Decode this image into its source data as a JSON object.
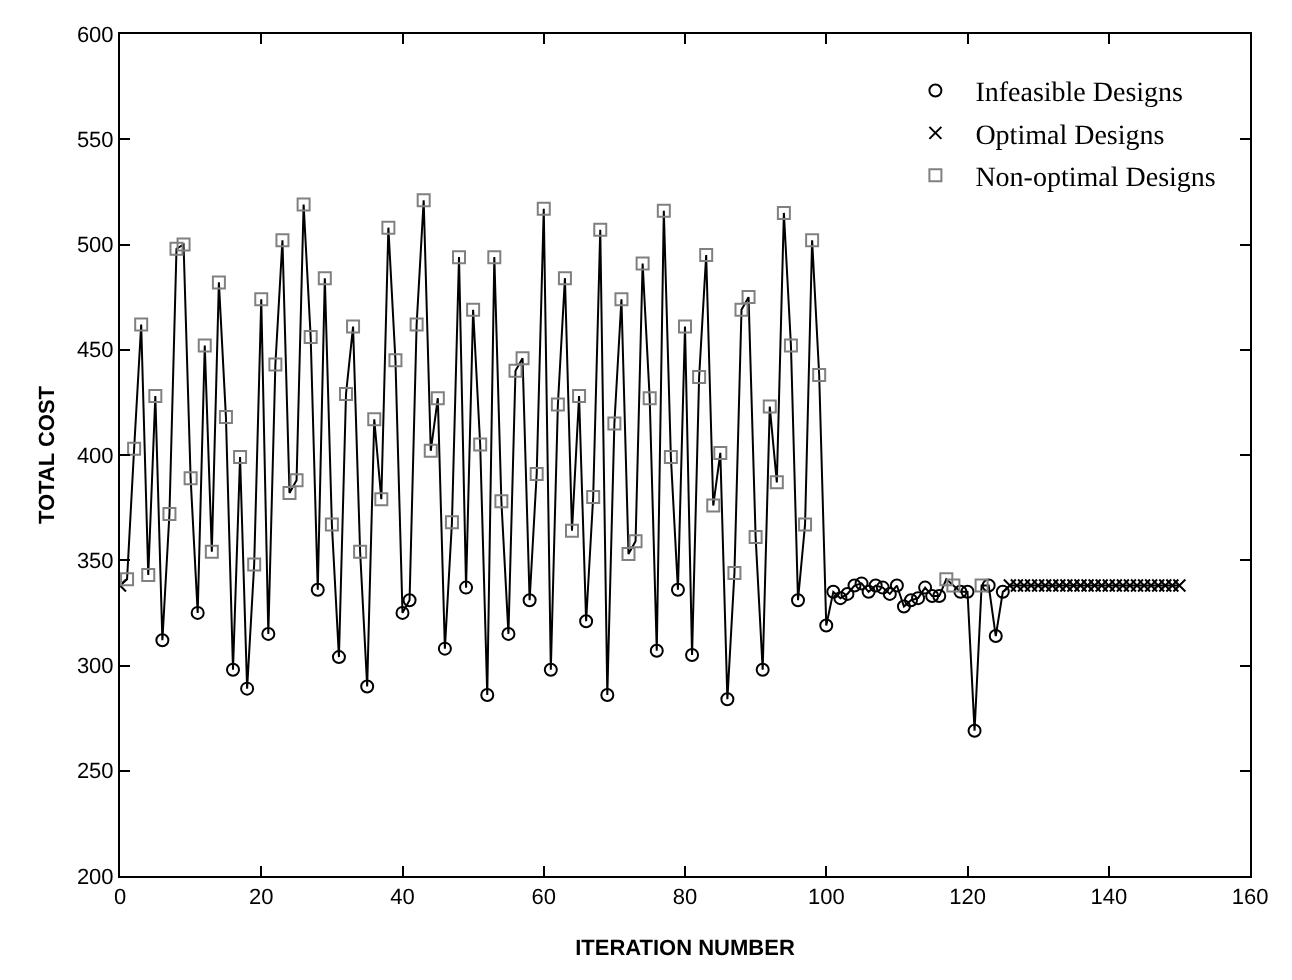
{
  "chart_data": {
    "type": "line",
    "xlabel": "ITERATION NUMBER",
    "ylabel": "TOTAL COST",
    "xlim": [
      0,
      160
    ],
    "xticks": [
      0,
      20,
      40,
      60,
      80,
      100,
      120,
      140,
      160
    ],
    "ylim": [
      200,
      600
    ],
    "yticks": [
      200,
      250,
      300,
      350,
      400,
      450,
      500,
      550,
      600
    ],
    "legend": "top right",
    "series": [
      {
        "color": "#000000",
        "marker": "none",
        "line_style": "solid",
        "x": [
          0,
          1,
          2,
          3,
          4,
          5,
          6,
          7,
          8,
          9,
          10,
          11,
          12,
          13,
          14,
          15,
          16,
          17,
          18,
          19,
          20,
          21,
          22,
          23,
          24,
          25,
          26,
          27,
          28,
          29,
          30,
          31,
          32,
          33,
          34,
          35,
          36,
          37,
          38,
          39,
          40,
          41,
          42,
          43,
          44,
          45,
          46,
          47,
          48,
          49,
          50,
          51,
          52,
          53,
          54,
          55,
          56,
          57,
          58,
          59,
          60,
          61,
          62,
          63,
          64,
          65,
          66,
          67,
          68,
          69,
          70,
          71,
          72,
          73,
          74,
          75,
          76,
          77,
          78,
          79,
          80,
          81,
          82,
          83,
          84,
          85,
          86,
          87,
          88,
          89,
          90,
          91,
          92,
          93,
          94,
          95,
          96,
          97,
          98,
          99,
          100,
          101,
          102,
          103,
          104,
          105,
          106,
          107,
          108,
          109,
          110,
          111,
          112,
          113,
          114,
          115,
          116,
          117,
          118,
          119,
          120,
          121,
          122,
          123,
          124,
          125,
          126,
          127,
          128,
          129,
          130,
          131,
          132,
          133,
          134,
          135,
          136,
          137,
          138,
          139,
          140,
          141,
          142,
          143,
          144,
          145,
          146,
          147,
          148,
          149,
          150
        ],
        "values": [
          338,
          341,
          403,
          462,
          343,
          428,
          312,
          372,
          498,
          500,
          389,
          325,
          452,
          354,
          482,
          418,
          298,
          399,
          289,
          348,
          474,
          315,
          443,
          502,
          382,
          388,
          519,
          456,
          336,
          484,
          367,
          304,
          429,
          461,
          354,
          290,
          417,
          379,
          508,
          445,
          325,
          331,
          462,
          521,
          402,
          427,
          308,
          368,
          494,
          337,
          469,
          405,
          286,
          494,
          378,
          315,
          440,
          446,
          331,
          391,
          517,
          298,
          424,
          484,
          364,
          428,
          321,
          380,
          507,
          286,
          415,
          474,
          353,
          359,
          491,
          427,
          307,
          516,
          399,
          336,
          461,
          305,
          437,
          495,
          376,
          401,
          284,
          344,
          469,
          475,
          361,
          298,
          423,
          387,
          515,
          452,
          331,
          367,
          502,
          438,
          319,
          335,
          332,
          334,
          338,
          339,
          335,
          338,
          337,
          334,
          338,
          328,
          331,
          332,
          337,
          333,
          333,
          341,
          338,
          335,
          335,
          269,
          338,
          338,
          314,
          335,
          338,
          338,
          338,
          338,
          338,
          338,
          338,
          338,
          338,
          338,
          338,
          338,
          338,
          338,
          338,
          338,
          338,
          338,
          338,
          338,
          338,
          338,
          338,
          338,
          338
        ]
      },
      {
        "type": "scatter",
        "name": "Infeasible Designs",
        "color": "#000000",
        "marker": "circle",
        "x": [
          6,
          11,
          16,
          18,
          21,
          28,
          31,
          35,
          40,
          41,
          46,
          49,
          52,
          55,
          58,
          61,
          66,
          69,
          76,
          79,
          81,
          86,
          91,
          96,
          100,
          101,
          102,
          103,
          104,
          105,
          106,
          107,
          108,
          109,
          110,
          111,
          112,
          113,
          114,
          115,
          116,
          119,
          120,
          121,
          123,
          124,
          125
        ],
        "values": [
          312,
          325,
          298,
          289,
          315,
          336,
          304,
          290,
          325,
          331,
          308,
          337,
          286,
          315,
          331,
          298,
          321,
          286,
          307,
          336,
          305,
          284,
          298,
          331,
          319,
          335,
          332,
          334,
          338,
          339,
          335,
          338,
          337,
          334,
          338,
          328,
          331,
          332,
          337,
          333,
          333,
          335,
          335,
          269,
          338,
          314,
          335
        ]
      },
      {
        "type": "scatter",
        "name": "Optimal Designs",
        "color": "#000000",
        "marker": "cross",
        "x": [
          0,
          126,
          127,
          128,
          129,
          130,
          131,
          132,
          133,
          134,
          135,
          136,
          137,
          138,
          139,
          140,
          141,
          142,
          143,
          144,
          145,
          146,
          147,
          148,
          149,
          150
        ],
        "values": [
          338,
          338,
          338,
          338,
          338,
          338,
          338,
          338,
          338,
          338,
          338,
          338,
          338,
          338,
          338,
          338,
          338,
          338,
          338,
          338,
          338,
          338,
          338,
          338,
          338,
          338
        ]
      },
      {
        "type": "scatter",
        "name": "Non-optimal Designs",
        "color": "#808080",
        "marker": "square",
        "x": [
          1,
          2,
          3,
          4,
          5,
          7,
          8,
          9,
          10,
          12,
          13,
          14,
          15,
          17,
          19,
          20,
          22,
          23,
          24,
          25,
          26,
          27,
          29,
          30,
          32,
          33,
          34,
          36,
          37,
          38,
          39,
          42,
          43,
          44,
          45,
          47,
          48,
          50,
          51,
          53,
          54,
          56,
          57,
          59,
          60,
          62,
          63,
          64,
          65,
          67,
          68,
          70,
          71,
          72,
          73,
          74,
          75,
          77,
          78,
          80,
          82,
          83,
          84,
          85,
          87,
          88,
          89,
          90,
          92,
          93,
          94,
          95,
          97,
          98,
          99,
          117,
          118,
          122
        ],
        "values": [
          341,
          403,
          462,
          343,
          428,
          372,
          498,
          500,
          389,
          452,
          354,
          482,
          418,
          399,
          348,
          474,
          443,
          502,
          382,
          388,
          519,
          456,
          484,
          367,
          429,
          461,
          354,
          417,
          379,
          508,
          445,
          462,
          521,
          402,
          427,
          368,
          494,
          469,
          405,
          494,
          378,
          440,
          446,
          391,
          517,
          424,
          484,
          364,
          428,
          380,
          507,
          415,
          474,
          353,
          359,
          491,
          427,
          516,
          399,
          461,
          437,
          495,
          376,
          401,
          344,
          469,
          475,
          361,
          423,
          387,
          515,
          452,
          367,
          502,
          438,
          341,
          338,
          338
        ]
      }
    ]
  }
}
